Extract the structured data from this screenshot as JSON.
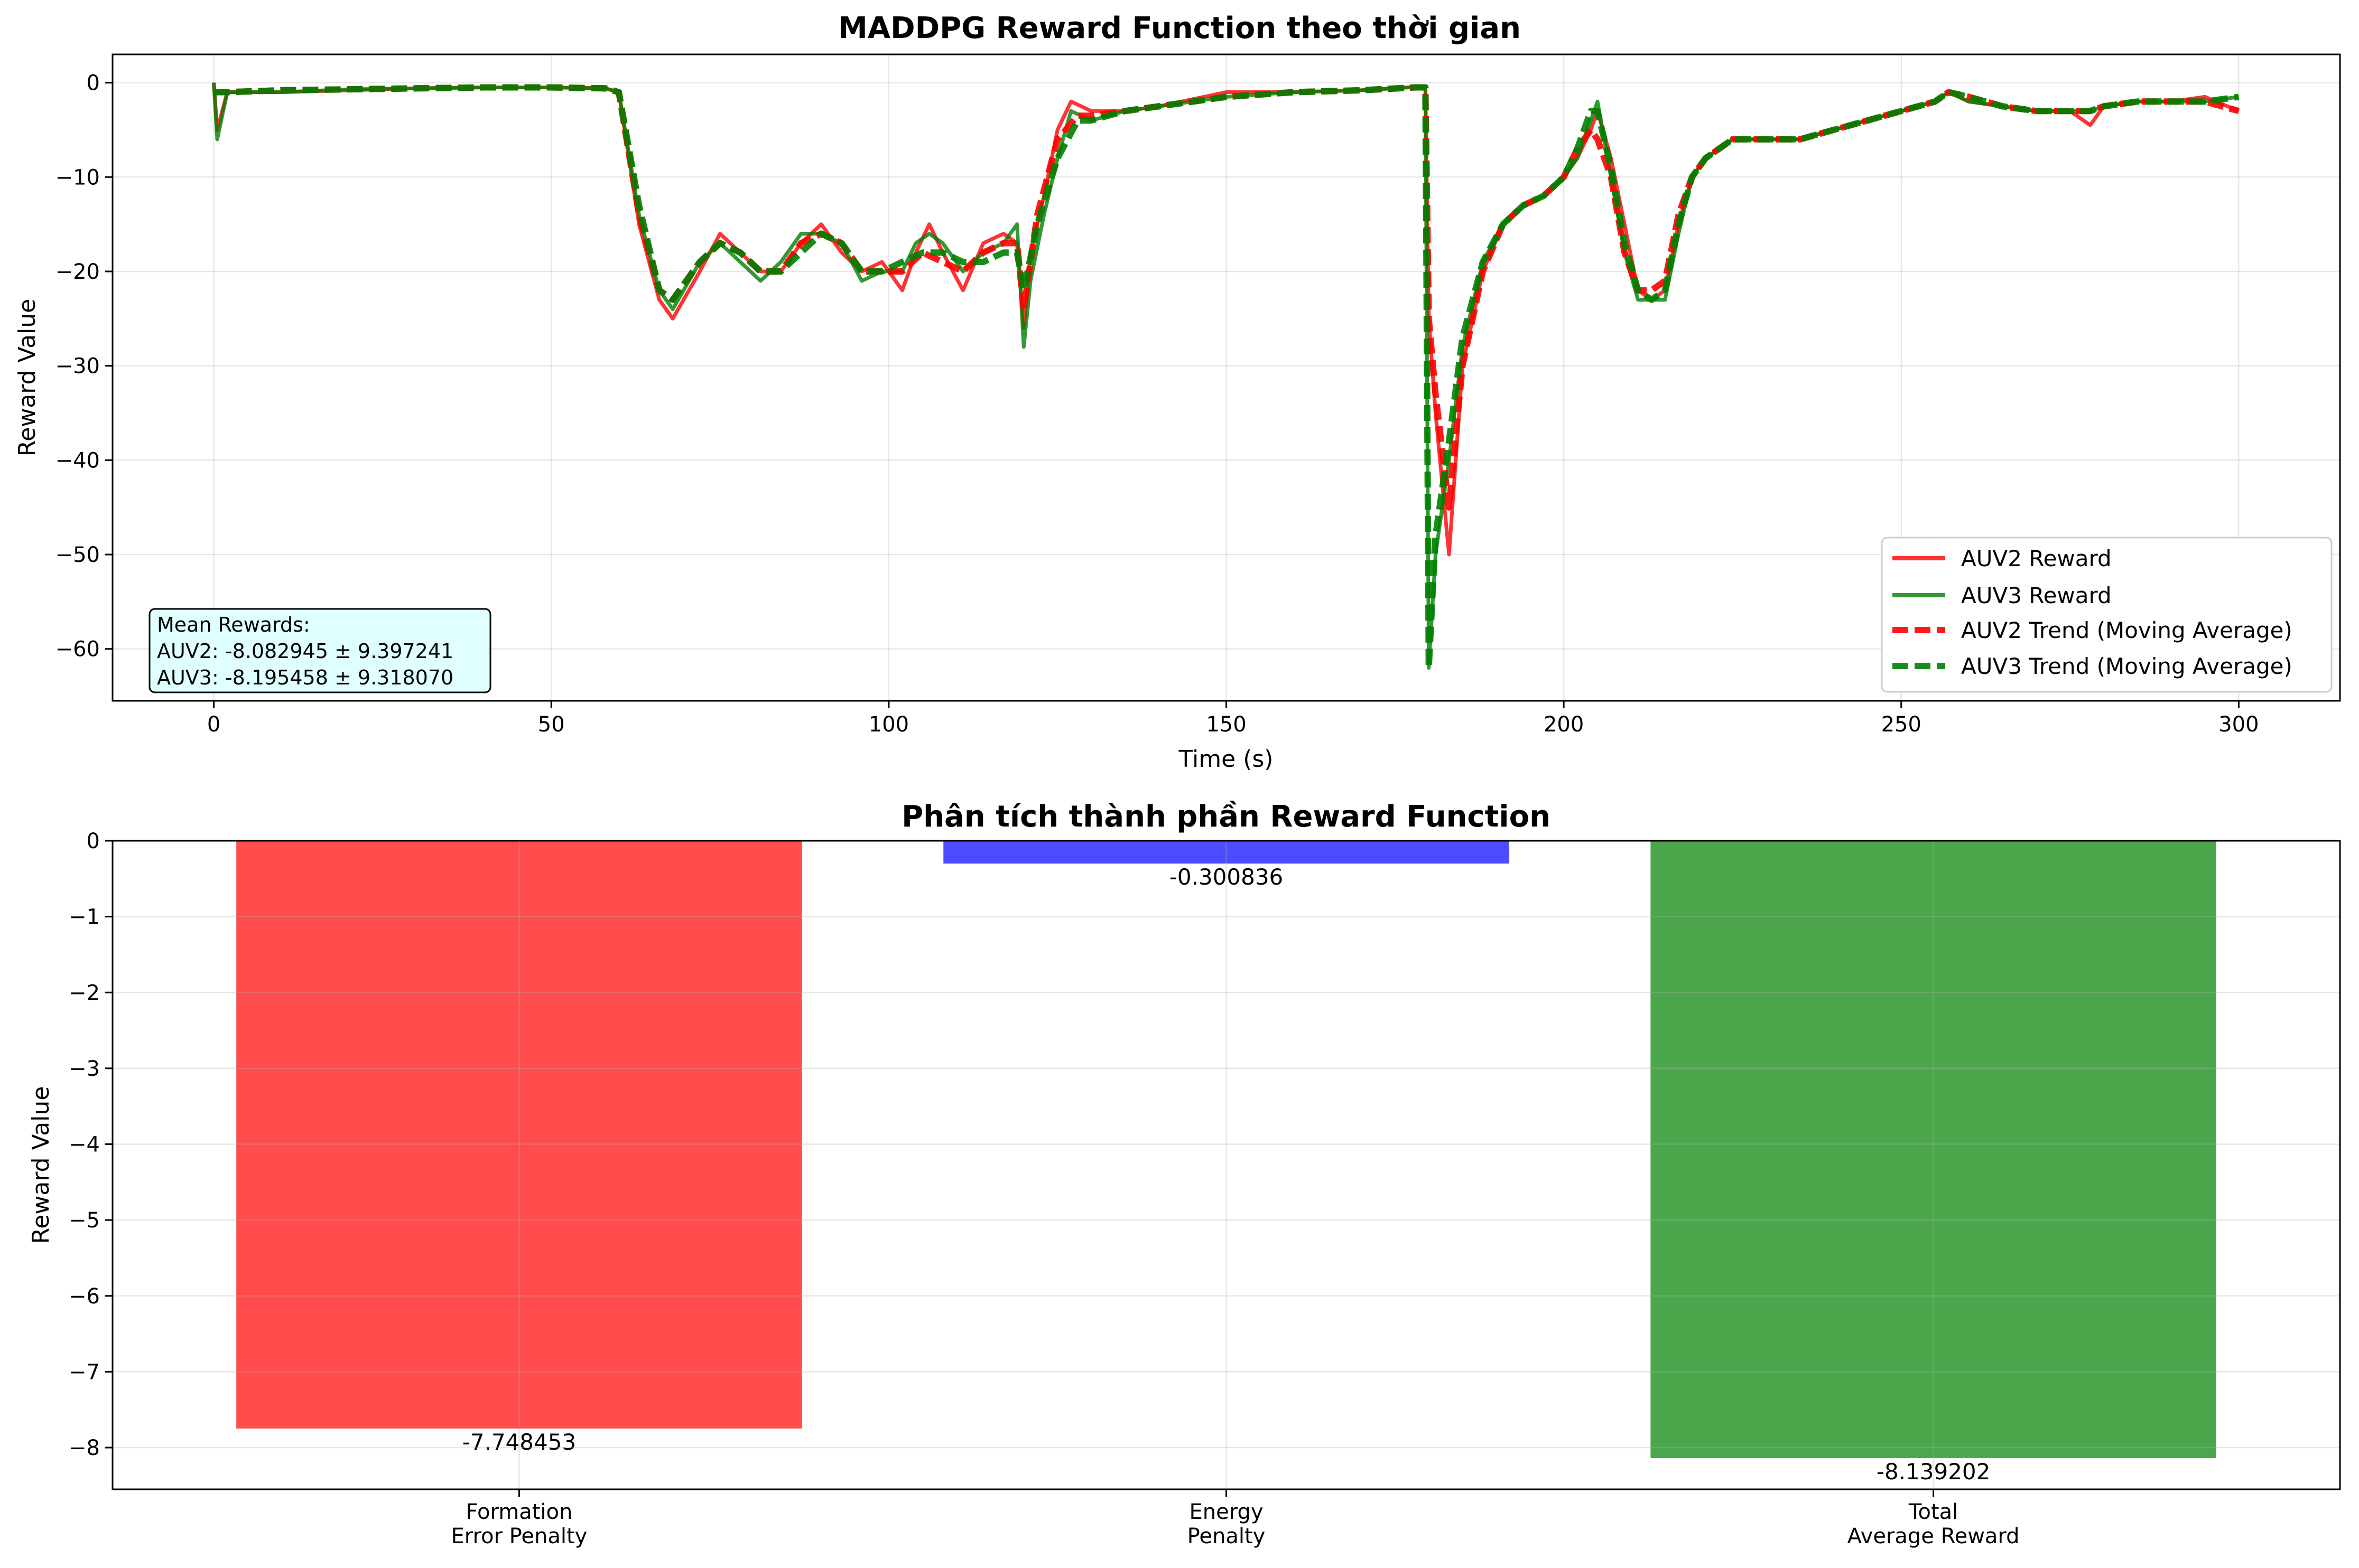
{
  "chart_data": [
    {
      "type": "line",
      "title": "MADDPG Reward Function theo thời gian",
      "xlabel": "Time (s)",
      "ylabel": "Reward Value",
      "xlim": [
        -15,
        315
      ],
      "ylim": [
        -65.5,
        3
      ],
      "xticks": [
        0,
        50,
        100,
        150,
        200,
        250,
        300
      ],
      "yticks": [
        0,
        -10,
        -20,
        -30,
        -40,
        -50,
        -60
      ],
      "grid": true,
      "legend_position": "lower-right",
      "series": [
        {
          "name": "AUV2 Reward",
          "color": "#ff0000",
          "style": "solid",
          "x": [
            0,
            0.5,
            2,
            10,
            20,
            30,
            40,
            50,
            58,
            60,
            63,
            66,
            68,
            72,
            75,
            78,
            81,
            84,
            87,
            90,
            93,
            96,
            99,
            102,
            104,
            106,
            108,
            111,
            114,
            117,
            119,
            120,
            121,
            123,
            125,
            127,
            130,
            135,
            140,
            150,
            160,
            170,
            177,
            179.5,
            180,
            181,
            183,
            185,
            188,
            191,
            194,
            197,
            200,
            202,
            204,
            205,
            207,
            209,
            211,
            213,
            215,
            217,
            219,
            221,
            225,
            230,
            235,
            240,
            245,
            250,
            255,
            257,
            260,
            265,
            270,
            275,
            278,
            280,
            285,
            290,
            295,
            300
          ],
          "y": [
            0,
            -5,
            -1,
            -1,
            -0.8,
            -0.6,
            -0.5,
            -0.5,
            -0.6,
            -1,
            -15,
            -23,
            -25,
            -20,
            -16,
            -18,
            -20,
            -20,
            -17,
            -15,
            -18,
            -20,
            -19,
            -22,
            -18,
            -15,
            -18,
            -22,
            -17,
            -16,
            -17,
            -26,
            -18,
            -12,
            -5,
            -2,
            -3,
            -3,
            -2.5,
            -1,
            -1,
            -0.8,
            -0.5,
            -0.5,
            -25,
            -35,
            -50,
            -30,
            -20,
            -15,
            -13,
            -12,
            -10,
            -8,
            -5,
            -3,
            -8,
            -15,
            -22,
            -23,
            -22,
            -15,
            -10,
            -8,
            -6,
            -6,
            -6,
            -5,
            -4,
            -3,
            -2,
            -1,
            -2,
            -2.5,
            -3,
            -3,
            -4.5,
            -2.5,
            -2,
            -2,
            -1.5,
            -3
          ]
        },
        {
          "name": "AUV3 Reward",
          "color": "#008000",
          "style": "solid",
          "x": [
            0,
            0.5,
            2,
            10,
            20,
            30,
            40,
            50,
            58,
            60,
            63,
            66,
            68,
            72,
            75,
            78,
            81,
            84,
            87,
            90,
            93,
            96,
            99,
            102,
            104,
            106,
            108,
            111,
            114,
            117,
            119,
            120,
            121,
            123,
            125,
            127,
            130,
            135,
            140,
            150,
            160,
            170,
            177,
            179.5,
            180,
            181,
            183,
            185,
            188,
            191,
            194,
            197,
            200,
            202,
            204,
            205,
            207,
            209,
            211,
            213,
            215,
            217,
            219,
            221,
            225,
            230,
            235,
            240,
            245,
            250,
            255,
            257,
            260,
            265,
            270,
            275,
            278,
            280,
            285,
            290,
            295,
            300
          ],
          "y": [
            0,
            -6,
            -1,
            -1,
            -0.7,
            -0.6,
            -0.5,
            -0.5,
            -0.6,
            -1,
            -14,
            -22,
            -24,
            -19,
            -17,
            -19,
            -21,
            -19,
            -16,
            -16,
            -17,
            -21,
            -20,
            -20,
            -17,
            -16,
            -17,
            -20,
            -18,
            -17,
            -15,
            -28,
            -21,
            -14,
            -8,
            -3,
            -4,
            -3,
            -2.5,
            -1.5,
            -1,
            -0.8,
            -0.5,
            -0.5,
            -62,
            -50,
            -40,
            -28,
            -19,
            -15,
            -13,
            -12,
            -10,
            -8,
            -4,
            -2,
            -10,
            -18,
            -23,
            -23,
            -23,
            -16,
            -10,
            -8,
            -6,
            -6,
            -6,
            -5,
            -4,
            -3,
            -2,
            -1,
            -2,
            -2.5,
            -3,
            -3,
            -3,
            -2.5,
            -2,
            -2,
            -2,
            -1.5
          ]
        },
        {
          "name": "AUV2 Trend (Moving Average)",
          "color": "#ff0000",
          "style": "dashed",
          "x": [
            0,
            2,
            10,
            20,
            30,
            40,
            50,
            58,
            60,
            63,
            66,
            68,
            72,
            75,
            78,
            81,
            84,
            87,
            90,
            93,
            96,
            99,
            102,
            105,
            108,
            111,
            114,
            117,
            119,
            120,
            122,
            125,
            128,
            130,
            135,
            140,
            150,
            160,
            170,
            178,
            179.5,
            180,
            181,
            183,
            185,
            188,
            191,
            194,
            197,
            200,
            202,
            204,
            205,
            207,
            209,
            211,
            213,
            215,
            217,
            219,
            221,
            225,
            230,
            235,
            240,
            245,
            250,
            255,
            257,
            260,
            265,
            270,
            275,
            278,
            280,
            285,
            290,
            295,
            300
          ],
          "y": [
            -1,
            -1,
            -0.8,
            -0.7,
            -0.6,
            -0.5,
            -0.5,
            -0.6,
            -1,
            -14,
            -22,
            -23,
            -19,
            -17,
            -18,
            -20,
            -20,
            -17,
            -16,
            -17,
            -20,
            -20,
            -20,
            -18,
            -19,
            -20,
            -18,
            -17,
            -17,
            -24,
            -14,
            -6,
            -3.5,
            -3.5,
            -3,
            -2.5,
            -1.5,
            -1,
            -0.8,
            -0.5,
            -0.5,
            -25,
            -33,
            -45,
            -30,
            -20,
            -15,
            -13,
            -12,
            -10,
            -7,
            -5,
            -6,
            -10,
            -18,
            -22,
            -22,
            -21,
            -14,
            -10,
            -8,
            -6,
            -6,
            -6,
            -5,
            -4,
            -3,
            -2,
            -1,
            -1.5,
            -2.5,
            -3,
            -3,
            -3,
            -2.5,
            -2,
            -2,
            -2,
            -3
          ]
        },
        {
          "name": "AUV3 Trend (Moving Average)",
          "color": "#008000",
          "style": "dashed",
          "x": [
            0,
            2,
            10,
            20,
            30,
            40,
            50,
            58,
            60,
            63,
            66,
            68,
            72,
            75,
            78,
            81,
            84,
            87,
            90,
            93,
            96,
            99,
            102,
            105,
            108,
            111,
            114,
            117,
            119,
            120,
            122,
            125,
            128,
            130,
            135,
            140,
            150,
            160,
            170,
            178,
            179.5,
            180,
            181,
            183,
            185,
            188,
            191,
            194,
            197,
            200,
            202,
            204,
            205,
            207,
            209,
            211,
            213,
            215,
            217,
            219,
            221,
            225,
            230,
            235,
            240,
            245,
            250,
            255,
            257,
            260,
            265,
            270,
            275,
            278,
            280,
            285,
            290,
            295,
            300
          ],
          "y": [
            -1,
            -1,
            -0.8,
            -0.7,
            -0.6,
            -0.5,
            -0.5,
            -0.6,
            -1,
            -13,
            -22,
            -23,
            -19,
            -17,
            -18,
            -20,
            -20,
            -18,
            -16,
            -17,
            -20,
            -20,
            -19,
            -18,
            -18,
            -19,
            -19,
            -18,
            -18,
            -22,
            -15,
            -8,
            -4,
            -4,
            -3,
            -2.5,
            -1.5,
            -1,
            -0.8,
            -0.5,
            -0.5,
            -62,
            -48,
            -38,
            -27,
            -19,
            -15,
            -13,
            -12,
            -10,
            -7,
            -3,
            -3,
            -9,
            -17,
            -22,
            -23,
            -22,
            -15,
            -10,
            -8,
            -6,
            -6,
            -6,
            -5,
            -4,
            -3,
            -2,
            -1,
            -1.5,
            -2.5,
            -3,
            -3,
            -3,
            -2.5,
            -2,
            -2,
            -2,
            -1.5
          ]
        }
      ],
      "annotation": {
        "title": "Mean Rewards:",
        "lines": [
          "AUV2: -8.082945 ± 9.397241",
          "AUV3: -8.195458 ± 9.318070"
        ]
      }
    },
    {
      "type": "bar",
      "title": "Phân tích thành phần Reward Function",
      "xlabel": "",
      "ylabel": "Reward Value",
      "ylim": [
        -8.55,
        0
      ],
      "yticks": [
        0,
        -1,
        -2,
        -3,
        -4,
        -5,
        -6,
        -7,
        -8
      ],
      "grid": true,
      "categories": [
        [
          "Formation",
          "Error Penalty"
        ],
        [
          "Energy",
          "Penalty"
        ],
        [
          "Total",
          "Average Reward"
        ]
      ],
      "values": [
        -7.748453,
        -0.300836,
        -8.139202
      ],
      "value_labels": [
        "-7.748453",
        "-0.300836",
        "-8.139202"
      ],
      "colors": [
        "#ff4c4c",
        "#4c4cff",
        "#4ca64c"
      ]
    }
  ]
}
